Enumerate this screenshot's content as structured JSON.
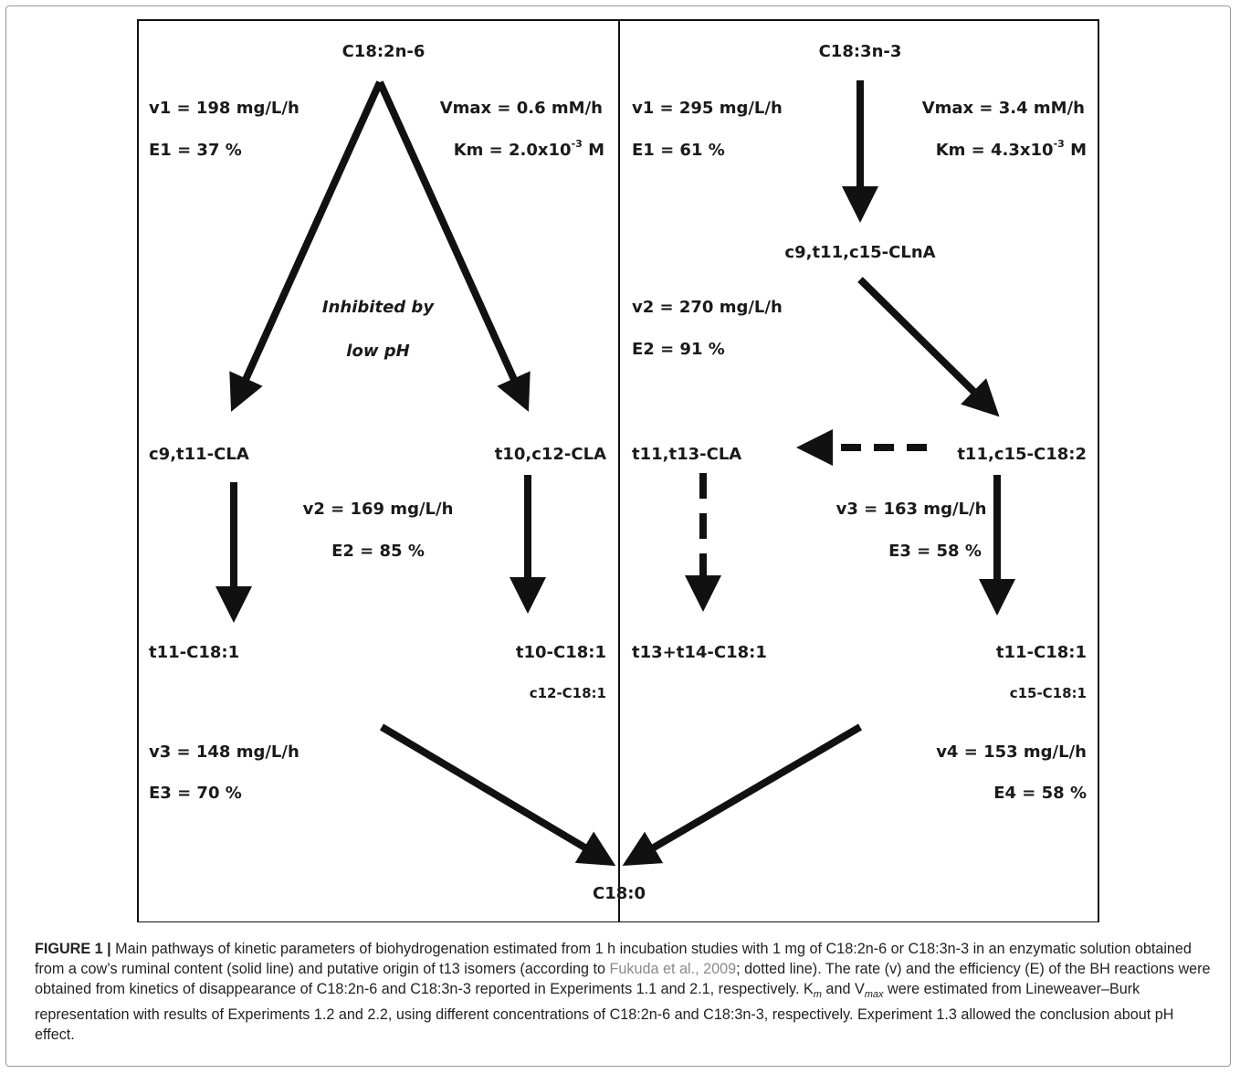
{
  "diagram": {
    "left": {
      "substrate": "C18:2n-6",
      "v1": "v1 = 198 mg/L/h",
      "e1": "E1 = 37 %",
      "vmax": "Vmax = 0.6 mM/h",
      "km_prefix": "Km = 2.0x10",
      "km_exp": "-3",
      "km_unit": " M",
      "inhibited_line1": "Inhibited by",
      "inhibited_line2": "low pH",
      "prod_a": "c9,t11-CLA",
      "prod_b": "t10,c12-CLA",
      "v2": "v2 = 169 mg/L/h",
      "e2": "E2 = 85 %",
      "prod_c": "t11-C18:1",
      "prod_d": "t10-C18:1",
      "prod_e": "c12-C18:1",
      "v3": "v3 = 148  mg/L/h",
      "e3": "E3 = 70 %"
    },
    "right": {
      "substrate": "C18:3n-3",
      "v1": "v1 = 295 mg/L/h",
      "e1": "E1 = 61 %",
      "vmax": "Vmax = 3.4 mM/h",
      "km_prefix": "Km = 4.3x10",
      "km_exp": "-3",
      "km_unit": " M",
      "prod_a": "c9,t11,c15-CLnA",
      "v2": "v2 = 270 mg/L/h",
      "e2": "E2 = 91 %",
      "prod_b": "t11,t13-CLA",
      "prod_c": "t11,c15-C18:2",
      "v3": "v3 = 163 mg/L/h",
      "e3": "E3 = 58 %",
      "prod_d": "t13+t14-C18:1",
      "prod_e": "t11-C18:1",
      "prod_f": "c15-C18:1",
      "v4": "v4 = 153 mg/L/h",
      "e4": "E4 = 58 %"
    },
    "final_product": "C18:0"
  },
  "caption": {
    "label": "FIGURE 1 |",
    "text_before_ref": " Main pathways of kinetic parameters of biohydrogenation estimated from 1 h incubation studies with 1 mg of C18:2n-6 or C18:3n-3 in an enzymatic solution obtained from a cow’s ruminal content (solid line) and putative origin of t13 isomers (according to ",
    "ref": "Fukuda et al., 2009",
    "text_after_ref": "; dotted line). The rate (v) and the efficiency (E) of the BH reactions were obtained from kinetics of disappearance of C18:2n-6 and C18:3n-3 reported in Experiments 1.1 and 2.1, respectively. ",
    "km_base": "K",
    "km_sub": "m",
    "text_mid": " and ",
    "vmax_base": "V",
    "vmax_sub": "max",
    "text_end": " were estimated from Lineweaver–Burk representation with results of Experiments 1.2 and 2.2, using different concentrations of C18:2n-6 and C18:3n-3, respectively. Experiment 1.3 allowed the conclusion about pH effect."
  },
  "colors": {
    "ink": "#1a1a1a",
    "caption_ref": "#8a8a8a",
    "frame": "#9a9a9a"
  }
}
